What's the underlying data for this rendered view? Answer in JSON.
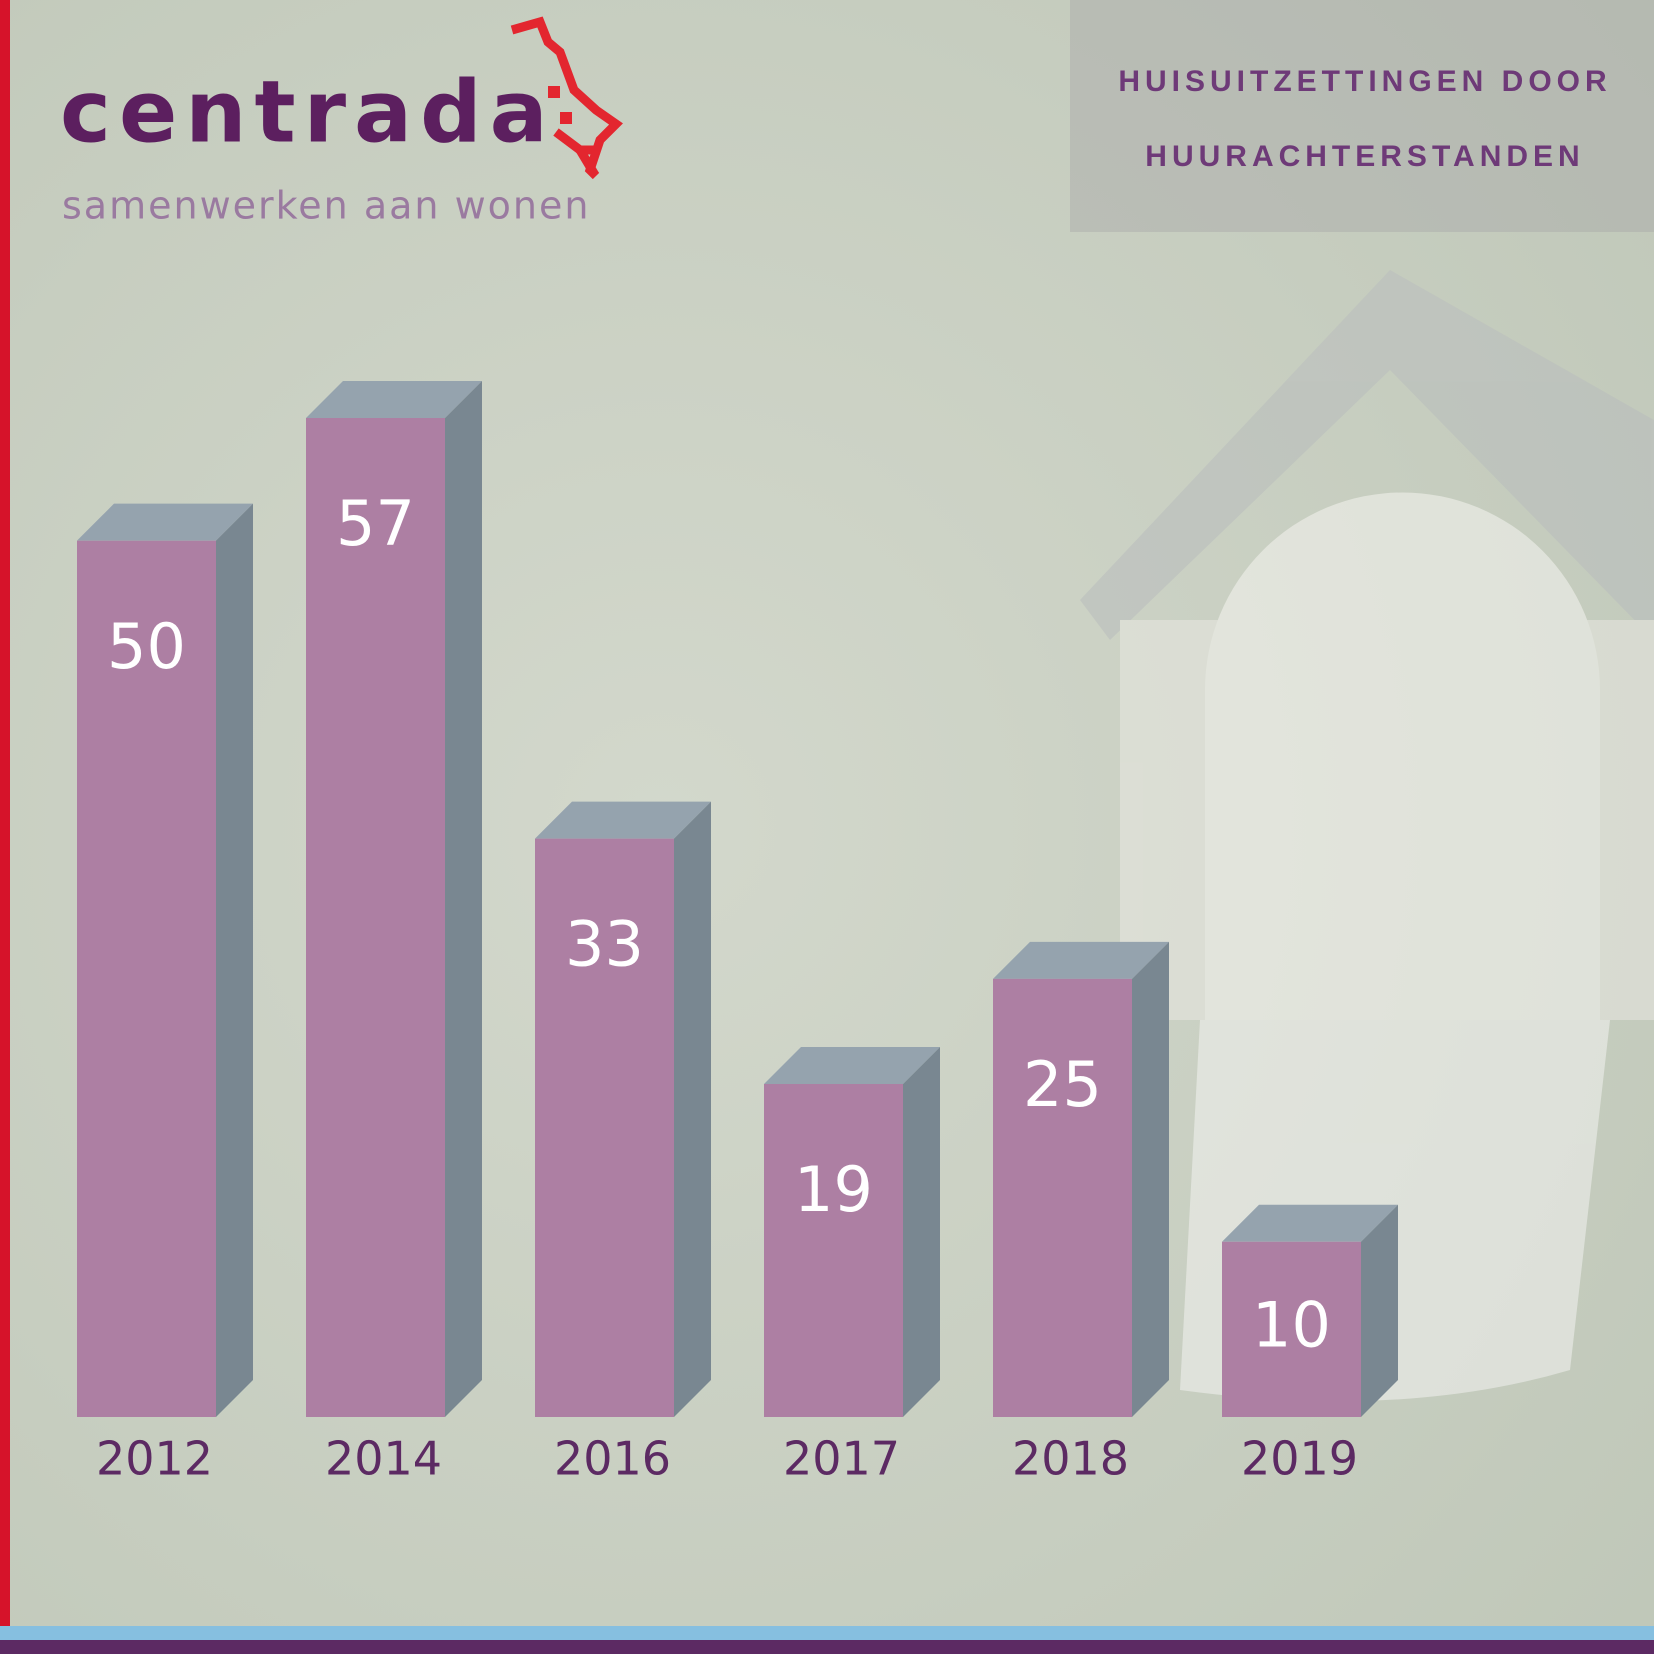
{
  "logo": {
    "name": "centrada",
    "tagline": "samenwerken aan wonen"
  },
  "chart_data": {
    "type": "bar3d",
    "title": "HUISUITZETTINGEN DOOR HUURACHTERSTANDEN",
    "categories": [
      "2012",
      "2014",
      "2016",
      "2017",
      "2018",
      "2019"
    ],
    "values": [
      50,
      57,
      33,
      19,
      25,
      10
    ],
    "color": "#ad7fa3",
    "side_color": "#798791",
    "top_color": "#95a3ae"
  }
}
